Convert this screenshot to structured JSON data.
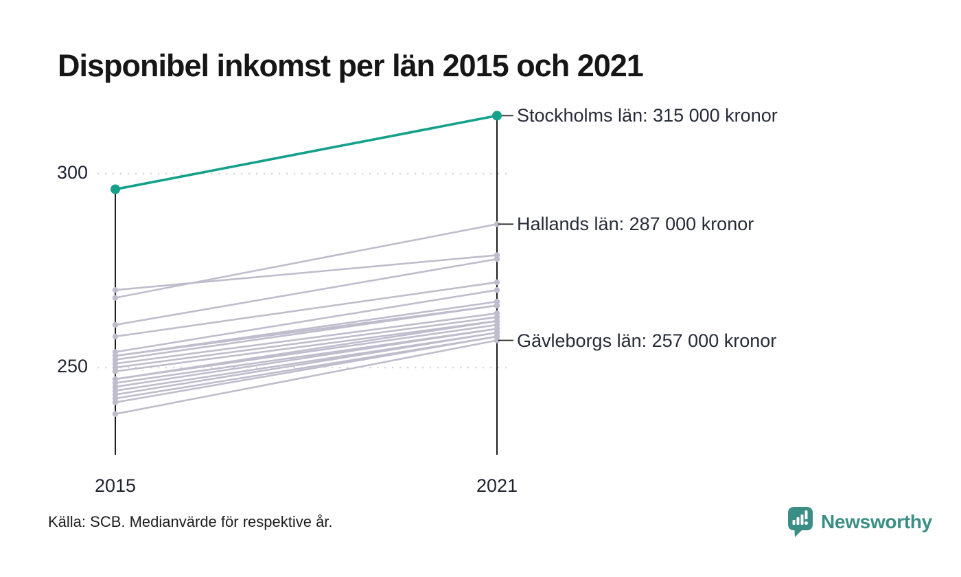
{
  "title": "Disponibel inkomst per län 2015 och 2021",
  "source": {
    "text": "Källa: SCB. Medianvärde för respektive år."
  },
  "branding": {
    "name": "Newsworthy",
    "icon": "newsworthy-pin-barchart-icon"
  },
  "colors": {
    "accent": "#14a08b",
    "muted_line": "#bfbdcd",
    "axis": "#1c1c1c",
    "gridline": "#d7d7dc",
    "connector": "#2b2b2b",
    "label_text": "#262b38",
    "title_text": "#161616",
    "brand": "#3b8e85"
  },
  "chart_data": {
    "type": "line",
    "variant": "slope-chart",
    "x": [
      "2015",
      "2021"
    ],
    "xlabel": "",
    "ylabel": "",
    "yticks": [
      250,
      300
    ],
    "ylim": [
      230,
      320
    ],
    "grid": "dotted horizontal lines at yticks",
    "legend": "none",
    "unit": "tusen kronor",
    "series": [
      {
        "name": "Stockholms län",
        "values": [
          296,
          315
        ],
        "highlight": true
      },
      {
        "name": null,
        "values": [
          270,
          279
        ],
        "highlight": false
      },
      {
        "name": "Hallands län",
        "values": [
          268,
          287
        ],
        "highlight": false
      },
      {
        "name": null,
        "values": [
          261,
          278
        ],
        "highlight": false
      },
      {
        "name": null,
        "values": [
          258,
          272
        ],
        "highlight": false
      },
      {
        "name": null,
        "values": [
          254,
          270
        ],
        "highlight": false
      },
      {
        "name": null,
        "values": [
          253,
          267
        ],
        "highlight": false
      },
      {
        "name": null,
        "values": [
          253,
          266
        ],
        "highlight": false
      },
      {
        "name": null,
        "values": [
          252,
          266
        ],
        "highlight": false
      },
      {
        "name": null,
        "values": [
          251,
          264
        ],
        "highlight": false
      },
      {
        "name": null,
        "values": [
          250,
          263
        ],
        "highlight": false
      },
      {
        "name": null,
        "values": [
          249,
          262
        ],
        "highlight": false
      },
      {
        "name": null,
        "values": [
          247,
          262
        ],
        "highlight": false
      },
      {
        "name": null,
        "values": [
          247,
          261
        ],
        "highlight": false
      },
      {
        "name": null,
        "values": [
          246,
          260
        ],
        "highlight": false
      },
      {
        "name": null,
        "values": [
          245,
          260
        ],
        "highlight": false
      },
      {
        "name": null,
        "values": [
          244,
          259
        ],
        "highlight": false
      },
      {
        "name": null,
        "values": [
          243,
          259
        ],
        "highlight": false
      },
      {
        "name": null,
        "values": [
          242,
          258
        ],
        "highlight": false
      },
      {
        "name": null,
        "values": [
          241,
          258
        ],
        "highlight": false
      },
      {
        "name": "Gävleborgs län",
        "values": [
          238,
          257
        ],
        "highlight": false
      }
    ],
    "right_labels": [
      {
        "text": "Stockholms län: 315 000 kronor",
        "at_value": 315
      },
      {
        "text": "Hallands län: 287 000 kronor",
        "at_value": 287
      },
      {
        "text": "Gävleborgs län: 257 000 kronor",
        "at_value": 257
      }
    ]
  }
}
